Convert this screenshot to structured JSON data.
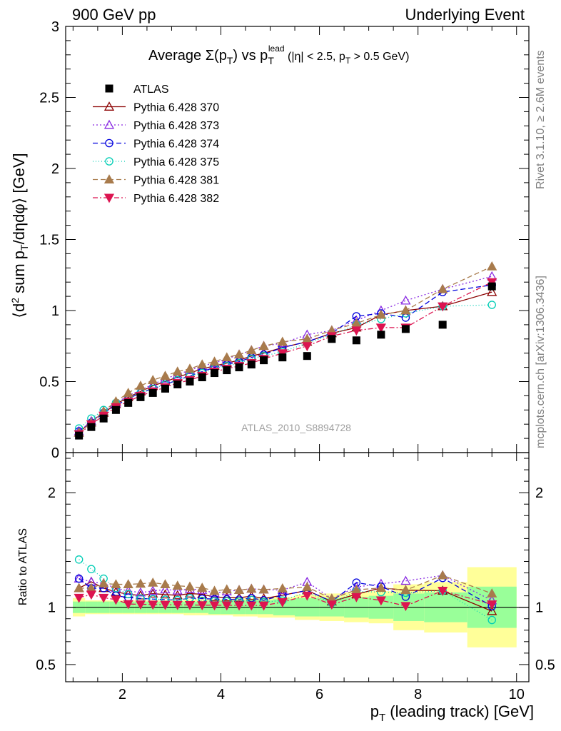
{
  "header": {
    "left": "900 GeV pp",
    "right": "Underlying Event"
  },
  "plot_title": {
    "prefix": "Average Σ(p",
    "sub_t": "T",
    "mid": ") vs p",
    "sup": "lead",
    "sub_t2": "T",
    "cut1": " (|η| < 2.5, p",
    "sub_t3": "T",
    "cut2": " > 0.5 GeV)"
  },
  "side_text": {
    "rivet": "Rivet 3.1.10, ≥ 2.6M events",
    "mcplots": "mcplots.cern.ch [arXiv:1306.3436]"
  },
  "watermark": "ATLAS_2010_S8894728",
  "chart_data": {
    "type": "scatter",
    "xlabel": "p_T (leading track) [GeV]",
    "ylabel_main": "⟨d² sum p_T/dηdφ⟩ [GeV]",
    "ylabel_ratio": "Ratio to ATLAS",
    "xlim": [
      0.85,
      10.25
    ],
    "ylim_main": [
      0,
      3
    ],
    "ylim_ratio": [
      0.35,
      2.35
    ],
    "x_ticks": [
      "2",
      "4",
      "6",
      "8",
      "10"
    ],
    "y_ticks_main": [
      "0",
      "0.5",
      "1",
      "1.5",
      "2",
      "2.5",
      "3"
    ],
    "y_ticks_ratio": [
      "0.5",
      "1",
      "2"
    ],
    "legend_placement": "top-left",
    "x": [
      1.12,
      1.37,
      1.62,
      1.87,
      2.12,
      2.37,
      2.62,
      2.87,
      3.12,
      3.37,
      3.62,
      3.87,
      4.12,
      4.37,
      4.62,
      4.87,
      5.25,
      5.75,
      6.25,
      6.75,
      7.25,
      7.75,
      8.5,
      9.5
    ],
    "data": {
      "name": "ATLAS",
      "values": [
        0.12,
        0.18,
        0.24,
        0.3,
        0.35,
        0.39,
        0.42,
        0.45,
        0.48,
        0.5,
        0.53,
        0.56,
        0.58,
        0.6,
        0.62,
        0.65,
        0.67,
        0.68,
        0.8,
        0.79,
        0.83,
        0.87,
        0.9,
        1.17
      ]
    },
    "band_inner": [
      0.05,
      0.05,
      0.05,
      0.05,
      0.05,
      0.05,
      0.05,
      0.05,
      0.05,
      0.05,
      0.05,
      0.06,
      0.06,
      0.06,
      0.06,
      0.06,
      0.07,
      0.08,
      0.08,
      0.09,
      0.1,
      0.12,
      0.13,
      0.18
    ],
    "band_outer": [
      0.08,
      0.06,
      0.06,
      0.06,
      0.06,
      0.06,
      0.06,
      0.06,
      0.06,
      0.07,
      0.07,
      0.07,
      0.07,
      0.08,
      0.08,
      0.09,
      0.09,
      0.11,
      0.12,
      0.13,
      0.14,
      0.2,
      0.22,
      0.35
    ],
    "series": [
      {
        "name": "Pythia 6.428 370",
        "color": "#8b0000",
        "marker": "triangle-open",
        "dash": "",
        "values": [
          0.14,
          0.22,
          0.28,
          0.34,
          0.39,
          0.43,
          0.47,
          0.5,
          0.53,
          0.56,
          0.59,
          0.61,
          0.63,
          0.65,
          0.68,
          0.7,
          0.74,
          0.78,
          0.84,
          0.88,
          0.97,
          1.0,
          1.03,
          1.13
        ]
      },
      {
        "name": "Pythia 6.428 373",
        "color": "#8a2be2",
        "marker": "triangle-open",
        "dash": "2,3",
        "values": [
          0.15,
          0.22,
          0.29,
          0.35,
          0.4,
          0.44,
          0.48,
          0.52,
          0.55,
          0.58,
          0.61,
          0.63,
          0.66,
          0.69,
          0.72,
          0.75,
          0.77,
          0.83,
          0.86,
          0.93,
          1.0,
          1.07,
          1.15,
          1.24
        ]
      },
      {
        "name": "Pythia 6.428 374",
        "color": "#0000dd",
        "marker": "circle-open",
        "dash": "7,4",
        "values": [
          0.15,
          0.21,
          0.28,
          0.33,
          0.38,
          0.42,
          0.45,
          0.48,
          0.51,
          0.54,
          0.57,
          0.6,
          0.62,
          0.64,
          0.67,
          0.69,
          0.74,
          0.78,
          0.84,
          0.96,
          0.98,
          0.95,
          1.13,
          1.18
        ]
      },
      {
        "name": "Pythia 6.428 375",
        "color": "#00cdb5",
        "marker": "circle-open",
        "dash": "1,3",
        "values": [
          0.17,
          0.24,
          0.3,
          0.35,
          0.39,
          0.42,
          0.45,
          0.48,
          0.51,
          0.54,
          0.56,
          0.59,
          0.61,
          0.63,
          0.66,
          0.68,
          0.71,
          0.77,
          0.83,
          0.9,
          0.94,
          0.98,
          1.03,
          1.04
        ]
      },
      {
        "name": "Pythia 6.428 381",
        "color": "#a87b4c",
        "marker": "triangle-filled",
        "dash": "7,4",
        "values": [
          0.14,
          0.21,
          0.29,
          0.36,
          0.42,
          0.47,
          0.51,
          0.54,
          0.57,
          0.59,
          0.62,
          0.64,
          0.67,
          0.69,
          0.72,
          0.75,
          0.78,
          0.8,
          0.86,
          0.91,
          0.97,
          1.0,
          1.15,
          1.31
        ]
      },
      {
        "name": "Pythia 6.428 382",
        "color": "#dc1450",
        "marker": "triangle-down-filled",
        "dash": "7,3,2,3",
        "values": [
          0.13,
          0.2,
          0.26,
          0.32,
          0.36,
          0.4,
          0.43,
          0.46,
          0.49,
          0.51,
          0.54,
          0.57,
          0.59,
          0.61,
          0.63,
          0.66,
          0.7,
          0.75,
          0.82,
          0.86,
          0.88,
          0.88,
          1.03,
          1.2
        ]
      }
    ]
  }
}
